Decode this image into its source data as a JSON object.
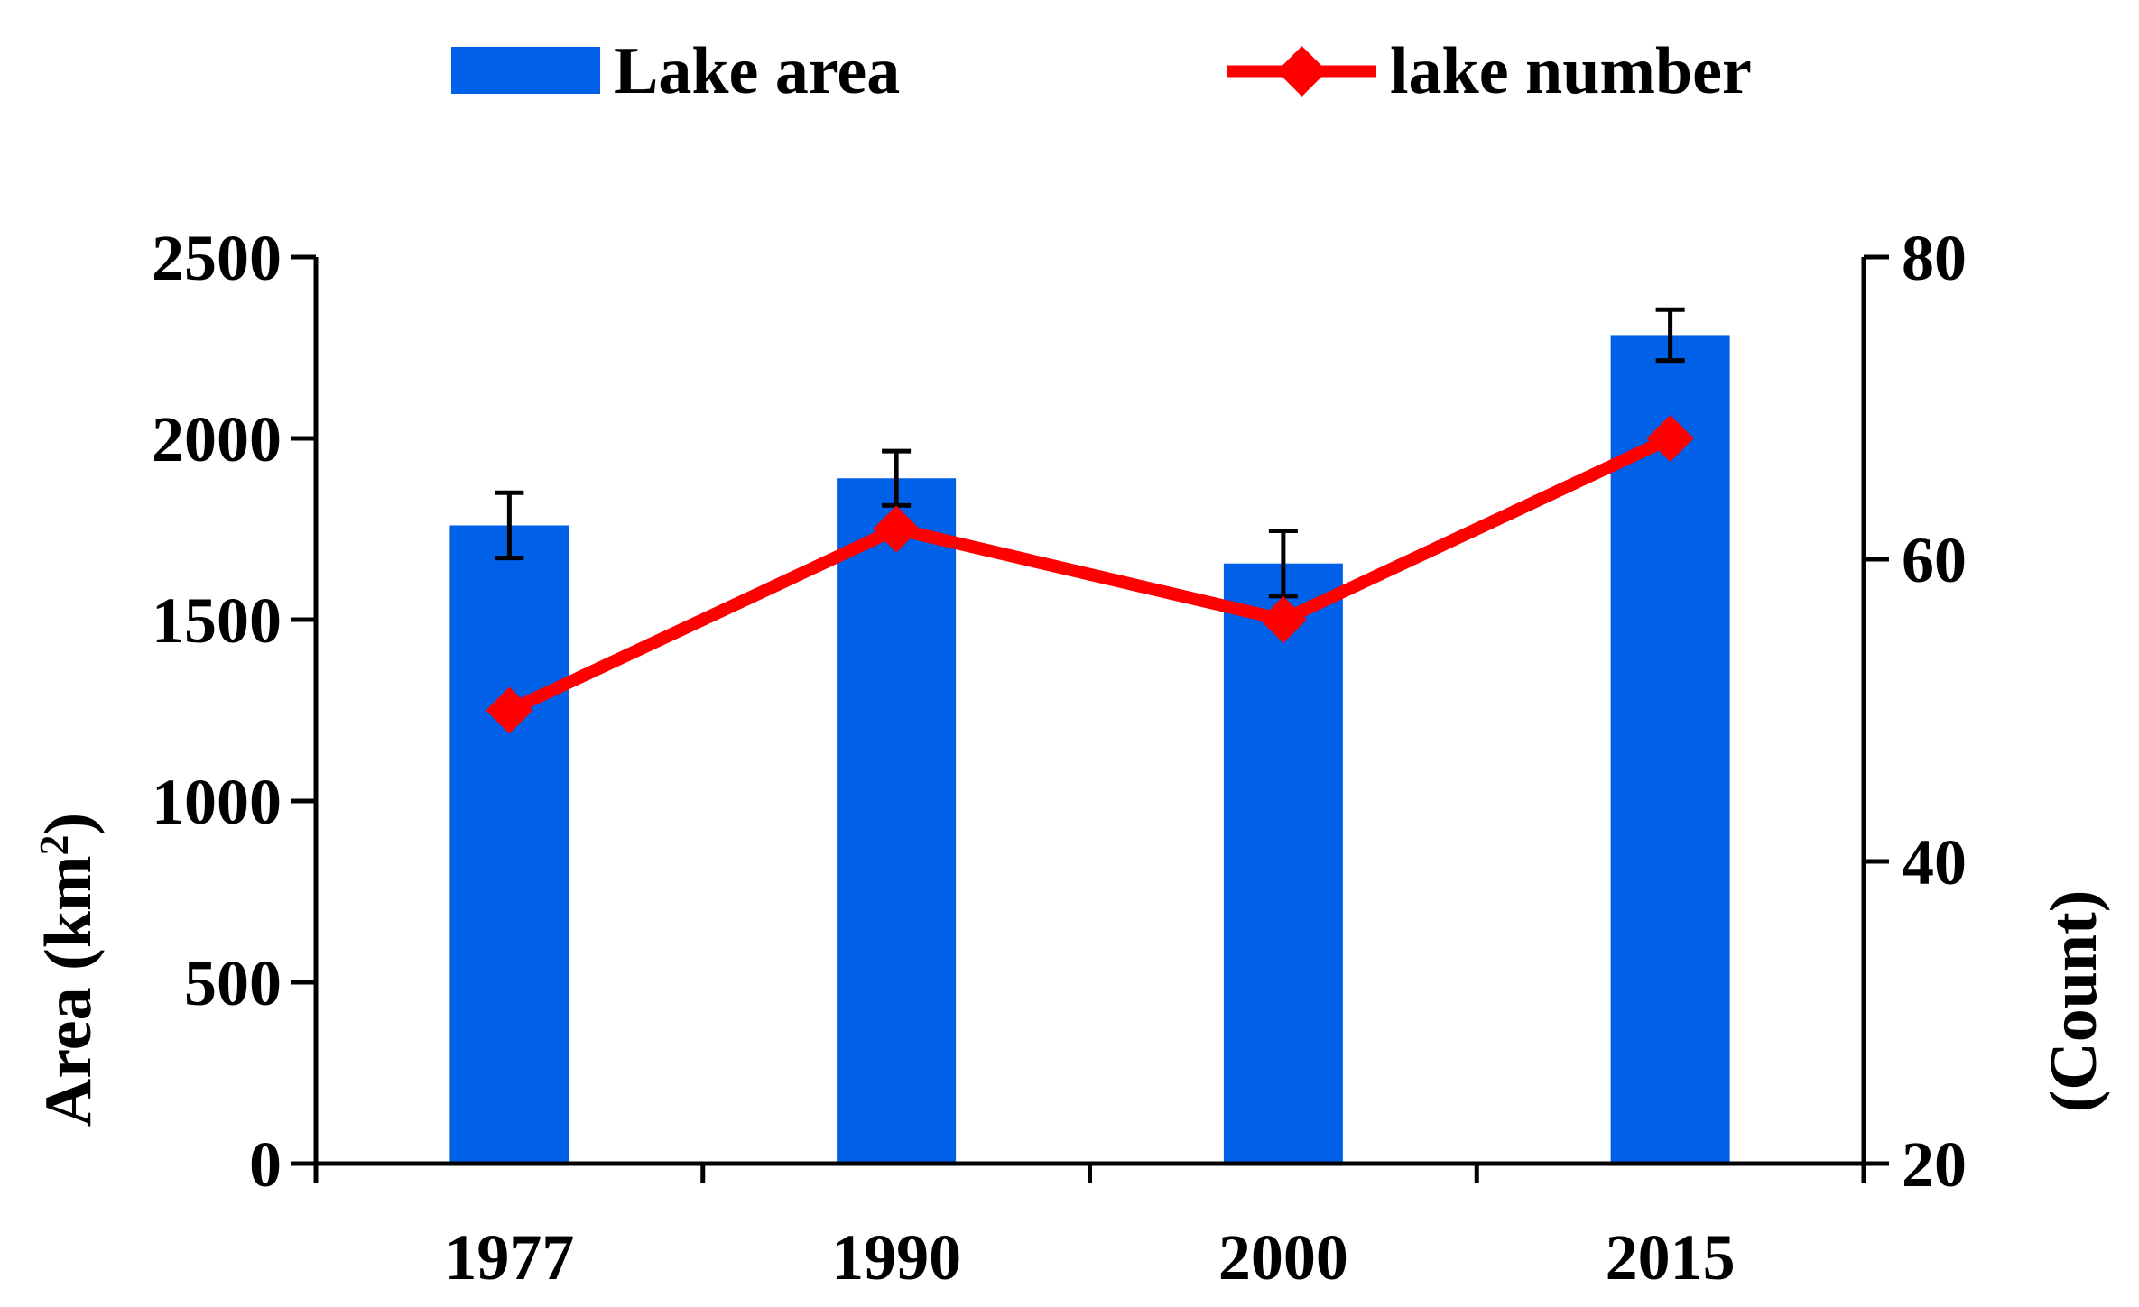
{
  "chart_data": {
    "type": "bar",
    "categories": [
      "1977",
      "1990",
      "2000",
      "2015"
    ],
    "series": [
      {
        "name": "Lake area",
        "type": "bar",
        "axis": "left",
        "color": "#0060e8",
        "values": [
          1760,
          1890,
          1655,
          2285
        ],
        "error": [
          90,
          75,
          90,
          70
        ]
      },
      {
        "name": "lake number",
        "type": "line",
        "axis": "right",
        "color": "#ff0000",
        "marker": "diamond",
        "values": [
          50,
          62,
          56,
          68
        ]
      }
    ],
    "ylabel": "Area (km²)",
    "ylabel_base": "Area (km",
    "ylabel_sup": "2",
    "ylabel_end": ")",
    "y2label": "(Count)",
    "ylim": [
      0,
      2500
    ],
    "yticks": [
      "0",
      "500",
      "1000",
      "1500",
      "2000",
      "2500"
    ],
    "ytick_values": [
      0,
      500,
      1000,
      1500,
      2000,
      2500
    ],
    "y2lim": [
      20,
      80
    ],
    "y2ticks": [
      "20",
      "40",
      "60",
      "80"
    ],
    "y2tick_values": [
      20,
      40,
      60,
      80
    ],
    "grid": false,
    "legend_position": "top"
  }
}
